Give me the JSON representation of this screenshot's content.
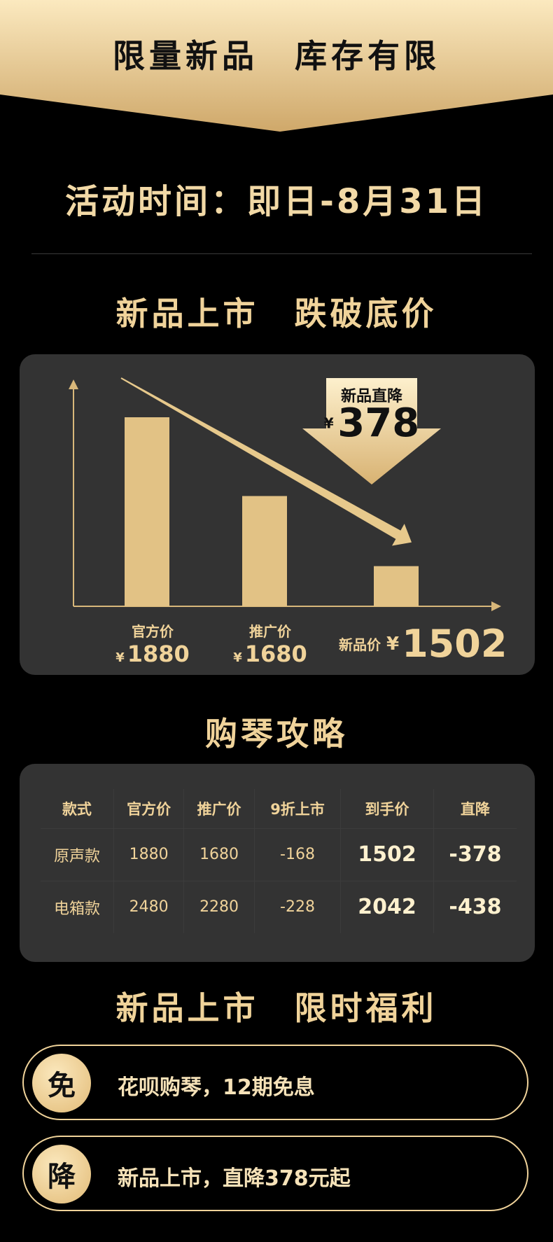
{
  "banner": {
    "title": "限量新品　库存有限"
  },
  "event": {
    "date_text": "活动时间：即日-8月31日"
  },
  "sections": {
    "price_title": "新品上市　跌破底价",
    "guide_title": "购琴攻略",
    "benefits_title": "新品上市　限时福利"
  },
  "chart_data": {
    "type": "bar",
    "categories": [
      "官方价",
      "推广价",
      "新品价"
    ],
    "values": [
      1880,
      1680,
      1502
    ],
    "currency": "¥",
    "value_labels": [
      "1880",
      "1680",
      "1502"
    ],
    "callout": {
      "label": "新品直降",
      "currency": "¥",
      "value": "378"
    },
    "colors": {
      "bar": "#e2c285",
      "axis": "#d8b77a",
      "arrow": "#e7c98c"
    }
  },
  "price_table": {
    "headers": [
      "款式",
      "官方价",
      "推广价",
      "9折上市",
      "到手价",
      "直降"
    ],
    "rows": [
      [
        "原声款",
        "1880",
        "1680",
        "-168",
        "1502",
        "-378"
      ],
      [
        "电箱款",
        "2480",
        "2280",
        "-228",
        "2042",
        "-438"
      ]
    ]
  },
  "benefits": [
    {
      "badge": "免",
      "text": "花呗购琴，12期免息"
    },
    {
      "badge": "降",
      "text": "新品上市，直降378元起"
    }
  ],
  "colors": {
    "gold": "#f0d39a",
    "panel": "#333333",
    "background": "#000000"
  }
}
